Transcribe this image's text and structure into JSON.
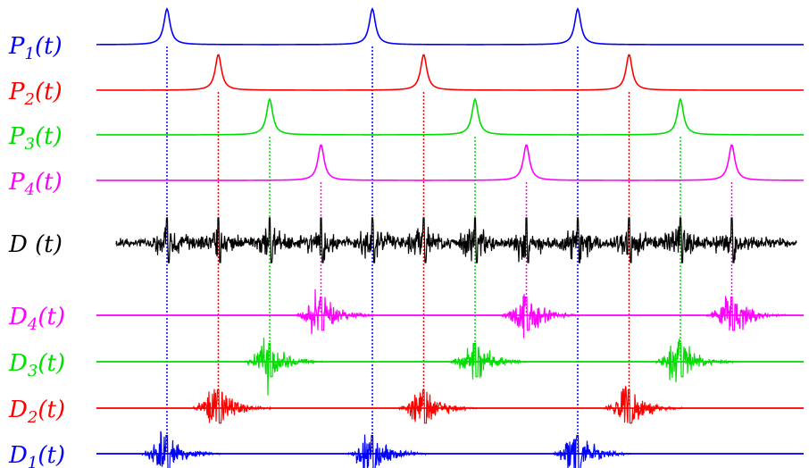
{
  "rows": [
    {
      "id": "p1",
      "kind": "pulse",
      "base": "P",
      "sub": "1",
      "tail": "(t)",
      "color": "#0000ff",
      "peaks": [
        0,
        1,
        2
      ],
      "phase": 0
    },
    {
      "id": "p2",
      "kind": "pulse",
      "base": "P",
      "sub": "2",
      "tail": "(t)",
      "color": "#ff0000",
      "peaks": [
        0,
        1,
        2
      ],
      "phase": 1
    },
    {
      "id": "p3",
      "kind": "pulse",
      "base": "P",
      "sub": "3",
      "tail": "(t)",
      "color": "#00dd00",
      "peaks": [
        0,
        1,
        2
      ],
      "phase": 2
    },
    {
      "id": "p4",
      "kind": "pulse",
      "base": "P",
      "sub": "4",
      "tail": "(t)",
      "color": "#ff00ff",
      "peaks": [
        0,
        1,
        2
      ],
      "phase": 3
    },
    {
      "id": "d",
      "kind": "combined",
      "base": "D",
      "sub": "",
      "tail": " (t)",
      "color": "#000000"
    },
    {
      "id": "d4",
      "kind": "burst",
      "base": "D",
      "sub": "4",
      "tail": "(t)",
      "color": "#ff00ff",
      "phase": 3
    },
    {
      "id": "d3",
      "kind": "burst",
      "base": "D",
      "sub": "3",
      "tail": "(t)",
      "color": "#00dd00",
      "phase": 2
    },
    {
      "id": "d2",
      "kind": "burst",
      "base": "D",
      "sub": "2",
      "tail": "(t)",
      "color": "#ff0000",
      "phase": 1
    },
    {
      "id": "d1",
      "kind": "burst",
      "base": "D",
      "sub": "1",
      "tail": "(t)",
      "color": "#0000ff",
      "phase": 0
    }
  ]
}
